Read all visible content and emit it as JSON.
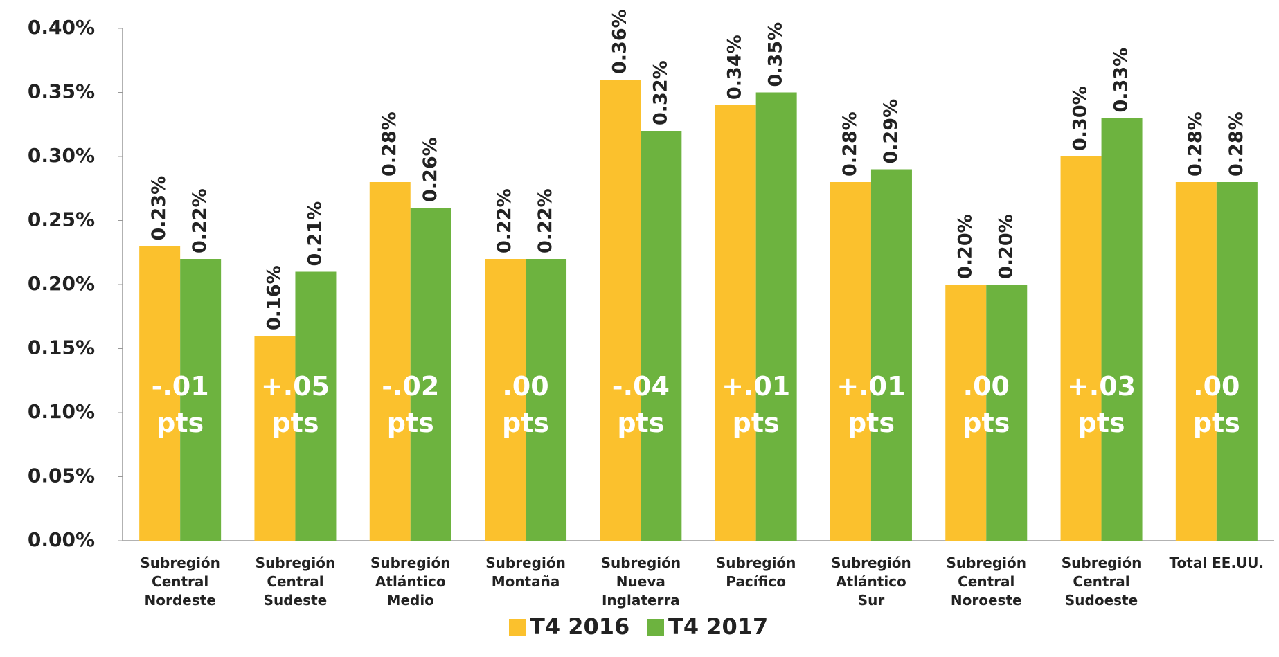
{
  "chart_data": {
    "type": "bar",
    "categories": [
      "Subregión\nCentral\nNordeste",
      "Subregión\nCentral\nSudeste",
      "Subregión\nAtlántico\nMedio",
      "Subregión\nMontaña",
      "Subregión\nNueva\nInglaterra",
      "Subregión\nPacífico",
      "Subregión\nAtlántico\nSur",
      "Subregión\nCentral\nNoroeste",
      "Subregión\nCentral\nSudoeste",
      "Total EE.UU."
    ],
    "series": [
      {
        "name": "T4 2016",
        "color": "#fbc12d",
        "values": [
          0.23,
          0.16,
          0.28,
          0.22,
          0.36,
          0.34,
          0.28,
          0.2,
          0.3,
          0.28
        ],
        "value_labels": [
          "0.23%",
          "0.16%",
          "0.28%",
          "0.22%",
          "0.36%",
          "0.34%",
          "0.28%",
          "0.20%",
          "0.30%",
          "0.28%"
        ]
      },
      {
        "name": "T4 2017",
        "color": "#6db33f",
        "values": [
          0.22,
          0.21,
          0.26,
          0.22,
          0.32,
          0.35,
          0.29,
          0.2,
          0.33,
          0.28
        ],
        "value_labels": [
          "0.22%",
          "0.21%",
          "0.26%",
          "0.22%",
          "0.32%",
          "0.35%",
          "0.29%",
          "0.20%",
          "0.33%",
          "0.28%"
        ]
      }
    ],
    "annotations": [
      "-.01\npts",
      "+.05\npts",
      "-.02\npts",
      ".00\npts",
      "-.04\npts",
      "+.01\npts",
      "+.01\npts",
      ".00\npts",
      "+.03\npts",
      ".00\npts"
    ],
    "ylim": [
      0,
      0.4
    ],
    "yticks": [
      {
        "value": 0,
        "label": "0.00%"
      },
      {
        "value": 0.05,
        "label": "0.05%"
      },
      {
        "value": 0.1,
        "label": "0.10%"
      },
      {
        "value": 0.15,
        "label": "0.15%"
      },
      {
        "value": 0.2,
        "label": "0.20%"
      },
      {
        "value": 0.25,
        "label": "0.25%"
      },
      {
        "value": 0.3,
        "label": "0.30%"
      },
      {
        "value": 0.35,
        "label": "0.35%"
      },
      {
        "value": 0.4,
        "label": "0.40%"
      }
    ],
    "grid": false,
    "legend": "bottom"
  }
}
